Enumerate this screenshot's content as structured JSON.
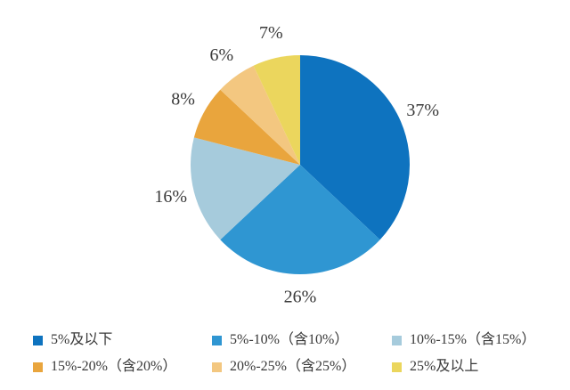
{
  "background_color": "#ffffff",
  "text_color": "#3a3a3a",
  "chart_data": {
    "type": "pie",
    "title": "",
    "start_angle_deg": 0,
    "direction": "clockwise",
    "legend_position": "bottom",
    "slices": [
      {
        "label": "5%及以下",
        "value": 37,
        "data_label": "37%",
        "color": "#0e73bf"
      },
      {
        "label": "5%-10%（含10%）",
        "value": 26,
        "data_label": "26%",
        "color": "#2f96d2"
      },
      {
        "label": "10%-15%（含15%）",
        "value": 16,
        "data_label": "16%",
        "color": "#a6cbdc"
      },
      {
        "label": "15%-20%（含20%）",
        "value": 8,
        "data_label": "8%",
        "color": "#e9a53d"
      },
      {
        "label": "20%-25%（含25%）",
        "value": 6,
        "data_label": "6%",
        "color": "#f3c780"
      },
      {
        "label": "25%及以上",
        "value": 7,
        "data_label": "7%",
        "color": "#ebd65d"
      }
    ]
  }
}
